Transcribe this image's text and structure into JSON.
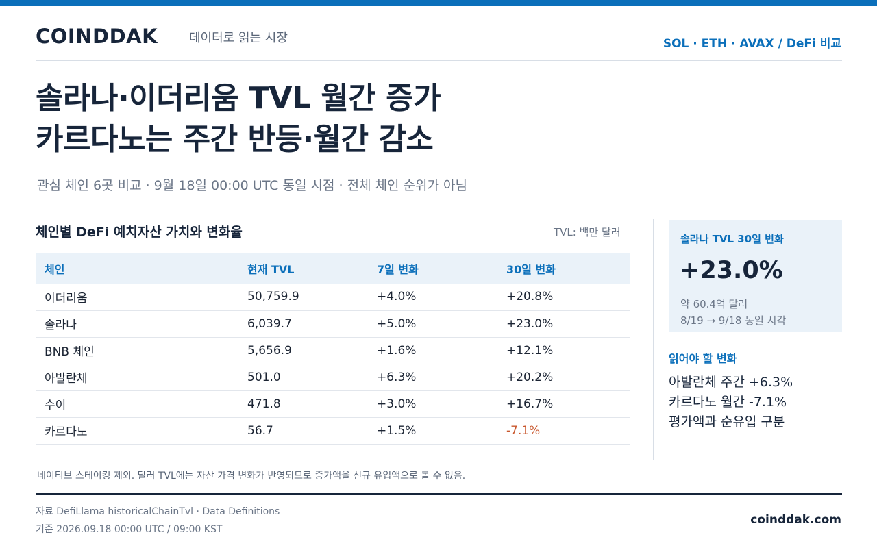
{
  "header": {
    "brand": "COINDDAK",
    "tagline": "데이터로 읽는 시장",
    "topic": "SOL · ETH · AVAX / DeFi 비교"
  },
  "headline": {
    "line1": "솔라나·이더리움 TVL 월간 증가",
    "line2": "카르다노는 주간 반등·월간 감소"
  },
  "subhead": "관심 체인 6곳 비교 · 9월 18일 00:00 UTC 동일 시점 · 전체 체인 순위가 아님",
  "table": {
    "title": "체인별 DeFi 예치자산 가치와 변화율",
    "unit": "TVL: 백만 달러",
    "headers": [
      "체인",
      "현재 TVL",
      "7일 변화",
      "30일 변화"
    ],
    "rows": [
      {
        "chain": "이더리움",
        "tvl": "50,759.9",
        "d7": "+4.0%",
        "d30": "+20.8%"
      },
      {
        "chain": "솔라나",
        "tvl": "6,039.7",
        "d7": "+5.0%",
        "d30": "+23.0%"
      },
      {
        "chain": "BNB 체인",
        "tvl": "5,656.9",
        "d7": "+1.6%",
        "d30": "+12.1%"
      },
      {
        "chain": "아발란체",
        "tvl": "501.0",
        "d7": "+6.3%",
        "d30": "+20.2%"
      },
      {
        "chain": "수이",
        "tvl": "471.8",
        "d7": "+3.0%",
        "d30": "+16.7%"
      },
      {
        "chain": "카르다노",
        "tvl": "56.7",
        "d7": "+1.5%",
        "d30": "-7.1%"
      }
    ]
  },
  "kpi": {
    "label": "솔라나 TVL 30일 변화",
    "value": "+23.0%",
    "sub1": "약 60.4억 달러",
    "sub2": "8/19 → 9/18 동일 시각"
  },
  "read": {
    "title": "읽어야 할 변화",
    "items": [
      "아발란체 주간 +6.3%",
      "카르다노 월간 -7.1%",
      "평가액과 순유입 구분"
    ]
  },
  "footnote": "네이티브 스테이킹 제외. 달러 TVL에는 자산 가격 변화가 반영되므로 증가액을 신규 유입액으로 볼 수 없음.",
  "footer": {
    "source": "자료  DefiLlama historicalChainTvl · Data Definitions",
    "basis": "기준  2026.09.18 00:00 UTC / 09:00 KST",
    "site": "coinddak.com"
  },
  "colors": {
    "accent": "#0b6fba",
    "negative": "#c9582e",
    "panel": "#eaf2f9",
    "ink": "#17253a"
  }
}
